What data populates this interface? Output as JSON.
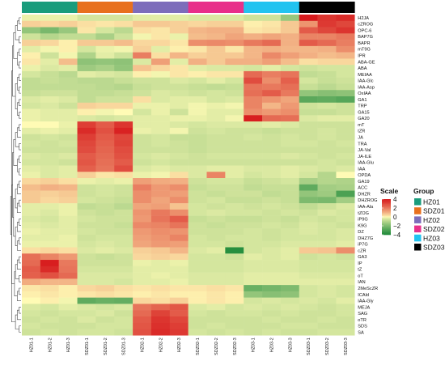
{
  "chart_data": {
    "type": "heatmap",
    "rows": [
      "H2JA",
      "cZROG",
      "OPC-6",
      "BAP7G",
      "BAPR",
      "mT9G",
      "IPR",
      "ABA-GE",
      "ABA",
      "MEIAA",
      "IAA-Glc",
      "IAA-Asp",
      "OxIAA",
      "GA1",
      "TRP",
      "GA15",
      "GA20",
      "mT",
      "tZR",
      "JA",
      "TRA",
      "JA-Val",
      "JA-ILE",
      "IAA-Glu",
      "IAA",
      "OPDA",
      "GA19",
      "ACC",
      "DHZR",
      "DHZROG",
      "IAA-Ala",
      "tZOG",
      "iP9G",
      "K9G",
      "DZ",
      "DHZ7G",
      "iP7G",
      "cZR",
      "GA3",
      "IP",
      "tZ",
      "oT",
      "IAN",
      "2MeScZR",
      "ICAld",
      "IAA-Gly",
      "MEJA",
      "SAG",
      "oTR",
      "SDS",
      "SA"
    ],
    "columns": [
      "HZ01-1",
      "HZ01-2",
      "HZ01-3",
      "SDZ01-1",
      "SDZ01-2",
      "SDZ01-3",
      "HZ02-1",
      "HZ02-2",
      "HZ02-3",
      "SDZ02-1",
      "SDZ02-2",
      "SDZ02-3",
      "HZ03-1",
      "HZ03-2",
      "HZ03-3",
      "SDZ03-1",
      "SDZ03-2",
      "SDZ03-3"
    ],
    "groups": [
      {
        "name": "HZ01",
        "color": "#1a9c7c",
        "span": 3
      },
      {
        "name": "SDZ01",
        "color": "#e8701e",
        "span": 3
      },
      {
        "name": "HZ02",
        "color": "#7d6dbb",
        "span": 3
      },
      {
        "name": "SDZ02",
        "color": "#e8308a",
        "span": 3
      },
      {
        "name": "HZ03",
        "color": "#22c3f0",
        "span": 3
      },
      {
        "name": "SDZ03",
        "color": "#000000",
        "span": 3
      }
    ],
    "values": [
      [
        -0.2,
        -0.2,
        -0.2,
        -0.5,
        -0.5,
        -0.5,
        -0.3,
        -0.3,
        -0.3,
        -0.4,
        -0.4,
        -0.4,
        -0.6,
        -0.6,
        -1.5,
        4.0,
        3.4,
        3.6
      ],
      [
        0.5,
        0.4,
        0.5,
        0.3,
        0.2,
        0.3,
        0.6,
        0.6,
        0.5,
        0.4,
        0.5,
        0.5,
        0.1,
        0.2,
        0.6,
        1.5,
        3.3,
        3.0
      ],
      [
        -1.6,
        -2.1,
        -1.5,
        0.2,
        -0.5,
        -0.9,
        0.3,
        0.2,
        0.5,
        0.9,
        1.0,
        1.0,
        0.2,
        0.3,
        0.6,
        2.6,
        3.0,
        3.4
      ],
      [
        -0.6,
        -1.0,
        -0.8,
        -0.8,
        -1.2,
        -0.6,
        -0.1,
        0.2,
        -0.2,
        0.8,
        0.9,
        1.2,
        1.0,
        1.2,
        1.0,
        1.8,
        1.8,
        2.0
      ],
      [
        0.5,
        0.4,
        0.1,
        0.6,
        0.6,
        0.8,
        0.4,
        0.4,
        0.2,
        1.6,
        1.7,
        1.6,
        2.0,
        2.3,
        1.0,
        2.6,
        2.3,
        1.9
      ],
      [
        -0.3,
        -0.1,
        0.1,
        -0.5,
        -0.2,
        -0.1,
        0.5,
        -0.3,
        0.1,
        0.2,
        0.6,
        0.2,
        0.9,
        1.0,
        0.9,
        0.9,
        1.0,
        1.6
      ],
      [
        0.1,
        -0.6,
        -0.1,
        -1.1,
        -0.3,
        -0.6,
        1.9,
        0.3,
        0.9,
        0.5,
        0.6,
        0.6,
        0.9,
        1.7,
        1.3,
        1.0,
        0.8,
        0.9
      ],
      [
        0.2,
        -0.3,
        0.8,
        -1.7,
        -1.6,
        -1.7,
        -0.4,
        1.3,
        -0.3,
        1.0,
        0.6,
        1.0,
        1.0,
        1.3,
        0.8,
        0.3,
        0.4,
        0.4
      ],
      [
        -0.2,
        -0.4,
        -0.3,
        -1.4,
        -1.2,
        -1.6,
        0.7,
        0.4,
        0.2,
        -0.3,
        -0.4,
        -0.4,
        -0.5,
        -0.3,
        -0.5,
        -0.6,
        -0.5,
        -0.5
      ],
      [
        -0.5,
        -0.7,
        -0.9,
        -0.3,
        -0.4,
        -0.5,
        0.1,
        -0.1,
        0.2,
        0.1,
        0.2,
        0.2,
        2.3,
        1.9,
        2.1,
        -0.8,
        -0.7,
        -0.5
      ],
      [
        -0.8,
        -0.7,
        -0.8,
        -0.9,
        -0.9,
        -0.7,
        -0.6,
        -0.6,
        -0.4,
        -0.5,
        -0.3,
        -0.5,
        2.9,
        1.6,
        2.5,
        -0.5,
        -0.7,
        -0.6
      ],
      [
        -0.8,
        -0.8,
        -0.8,
        -0.8,
        -0.9,
        -1.0,
        -0.7,
        -0.6,
        -0.6,
        -0.7,
        -0.8,
        -0.7,
        2.1,
        2.0,
        2.2,
        -0.7,
        -0.9,
        -0.7
      ],
      [
        -0.7,
        -0.6,
        -0.6,
        -0.8,
        -0.8,
        -0.7,
        -0.6,
        -0.4,
        -0.5,
        -0.6,
        -0.5,
        -0.6,
        2.2,
        2.6,
        2.0,
        -1.6,
        -1.8,
        -1.7
      ],
      [
        -0.4,
        -0.3,
        -0.4,
        -0.8,
        -0.6,
        -0.6,
        0.3,
        -0.4,
        -0.3,
        -0.3,
        -0.5,
        -0.4,
        1.8,
        1.5,
        1.2,
        -2.7,
        -2.6,
        -2.8
      ],
      [
        -0.5,
        -0.4,
        -0.6,
        0.5,
        0.4,
        0.4,
        -0.2,
        -0.2,
        -0.3,
        -0.1,
        -0.2,
        -0.1,
        1.8,
        0.9,
        1.4,
        -0.6,
        -0.5,
        -0.6
      ],
      [
        -0.2,
        -0.3,
        -0.3,
        0.1,
        -0.1,
        0.0,
        -0.5,
        -0.2,
        -0.6,
        -0.1,
        -0.3,
        -0.3,
        1.6,
        1.4,
        1.6,
        -0.7,
        -0.7,
        -0.6
      ],
      [
        -0.2,
        -0.3,
        -0.3,
        -0.4,
        -0.5,
        -0.4,
        -0.3,
        -0.3,
        -0.2,
        -0.2,
        -0.3,
        -0.1,
        3.9,
        2.3,
        2.2,
        -0.4,
        -0.3,
        -0.3
      ],
      [
        0.0,
        0.0,
        -0.2,
        3.2,
        2.6,
        3.4,
        -0.3,
        -0.3,
        -0.4,
        -0.5,
        -0.4,
        -0.4,
        -0.4,
        -0.3,
        -0.4,
        -0.6,
        -0.6,
        -0.6
      ],
      [
        -0.3,
        -0.2,
        -0.3,
        3.6,
        2.8,
        3.8,
        -0.2,
        -0.3,
        -0.1,
        -0.6,
        -0.5,
        -0.6,
        -0.6,
        -0.7,
        -0.6,
        -0.6,
        -0.5,
        -0.6
      ],
      [
        -0.6,
        -0.5,
        -0.6,
        3.2,
        2.6,
        3.0,
        -0.6,
        -0.5,
        -0.7,
        -0.7,
        -0.6,
        -0.6,
        -0.5,
        -0.6,
        -0.5,
        -0.6,
        -0.5,
        -0.6
      ],
      [
        -0.5,
        -0.6,
        -0.5,
        3.0,
        2.5,
        3.1,
        -0.6,
        -0.5,
        -0.6,
        -0.7,
        -0.6,
        -0.6,
        -0.6,
        -0.6,
        -0.5,
        -0.5,
        -0.6,
        -0.5
      ],
      [
        -0.6,
        -0.6,
        -0.6,
        2.9,
        2.4,
        2.9,
        -0.6,
        -0.6,
        -0.6,
        -0.7,
        -0.6,
        -0.6,
        -0.6,
        -0.6,
        -0.6,
        -0.6,
        -0.6,
        -0.6
      ],
      [
        -0.4,
        -0.5,
        -0.4,
        2.6,
        2.3,
        2.8,
        -0.5,
        -0.4,
        -0.5,
        -0.6,
        -0.5,
        -0.5,
        -0.5,
        -0.5,
        -0.4,
        -0.5,
        -0.6,
        -0.5
      ],
      [
        -0.5,
        -0.5,
        -0.6,
        2.7,
        2.2,
        2.6,
        -0.6,
        -0.5,
        -0.6,
        -0.6,
        -0.6,
        -0.6,
        -0.6,
        -0.6,
        -0.6,
        -0.6,
        -0.5,
        -0.6
      ],
      [
        -0.3,
        -0.4,
        -0.3,
        2.5,
        2.1,
        2.9,
        -0.4,
        -0.3,
        -0.4,
        -0.4,
        -0.3,
        -0.3,
        -0.4,
        -0.4,
        -0.3,
        -0.4,
        -0.5,
        -0.4
      ],
      [
        -0.2,
        -0.4,
        -0.3,
        0.5,
        0.2,
        0.3,
        -0.2,
        -0.1,
        0.3,
        -0.4,
        1.8,
        -0.3,
        -0.5,
        -0.4,
        -0.3,
        -0.5,
        -1.0,
        0.0
      ],
      [
        0.4,
        0.5,
        0.3,
        -0.2,
        -0.3,
        -0.2,
        1.3,
        1.1,
        1.0,
        -0.6,
        -0.5,
        -0.5,
        -0.7,
        -0.6,
        -0.5,
        -1.2,
        -1.0,
        -1.1
      ],
      [
        0.8,
        1.0,
        0.9,
        -0.6,
        -0.5,
        -0.6,
        1.9,
        1.4,
        1.6,
        -0.7,
        -0.6,
        -0.6,
        -0.8,
        -0.7,
        -0.7,
        -2.6,
        -1.3,
        -1.2
      ],
      [
        0.6,
        0.5,
        0.6,
        -0.6,
        -0.5,
        -0.6,
        1.6,
        1.4,
        1.3,
        -0.6,
        -0.7,
        -0.6,
        -0.6,
        -0.8,
        -0.7,
        -1.6,
        -1.4,
        -3.0
      ],
      [
        0.6,
        0.4,
        0.5,
        -0.5,
        -0.6,
        -0.7,
        1.6,
        1.2,
        1.6,
        -0.6,
        -0.5,
        -0.7,
        -0.7,
        -0.6,
        -0.7,
        -2.0,
        -2.1,
        -1.3
      ],
      [
        -0.3,
        -0.3,
        -0.2,
        -0.8,
        -0.7,
        -0.9,
        1.2,
        1.3,
        0.7,
        -0.5,
        -0.6,
        -0.5,
        -0.6,
        -0.5,
        -0.6,
        -0.8,
        -0.6,
        -0.4
      ],
      [
        -0.3,
        -0.4,
        -0.2,
        -0.6,
        -0.7,
        -0.6,
        1.5,
        2.0,
        1.6,
        -0.5,
        -0.4,
        -0.5,
        -0.5,
        -0.6,
        -0.5,
        -0.6,
        -0.4,
        -0.5
      ],
      [
        -0.4,
        -0.5,
        -0.3,
        -0.5,
        -0.6,
        -0.6,
        1.4,
        2.1,
        2.6,
        -0.7,
        -0.6,
        -0.7,
        -0.7,
        -0.6,
        -0.7,
        -0.5,
        -0.6,
        -0.5
      ],
      [
        -0.3,
        -0.4,
        -0.3,
        -0.6,
        -0.6,
        -0.7,
        1.7,
        1.8,
        2.1,
        -0.6,
        -0.7,
        -0.6,
        -0.6,
        -0.5,
        -0.6,
        -0.4,
        -0.5,
        -0.6
      ],
      [
        -0.2,
        -0.3,
        -0.3,
        -0.5,
        -0.6,
        -0.6,
        1.4,
        1.6,
        1.5,
        -0.6,
        -0.6,
        -0.6,
        -0.5,
        -0.6,
        -0.5,
        -0.4,
        -0.5,
        -0.4
      ],
      [
        -0.3,
        -0.3,
        -0.2,
        -0.6,
        -0.5,
        -0.5,
        1.3,
        1.5,
        1.8,
        -0.5,
        -0.6,
        -0.5,
        -0.5,
        -0.6,
        -0.5,
        -0.5,
        -0.5,
        -0.4
      ],
      [
        -0.2,
        -0.2,
        -0.2,
        -0.5,
        -0.4,
        -0.5,
        1.2,
        1.4,
        1.3,
        -0.5,
        -0.5,
        -0.6,
        -0.5,
        -0.5,
        -0.4,
        -0.4,
        -0.4,
        -0.3
      ],
      [
        0.3,
        0.4,
        0.3,
        -0.4,
        -0.3,
        -0.4,
        0.5,
        0.6,
        0.9,
        -0.4,
        -0.3,
        -3.8,
        -0.5,
        -0.4,
        -0.3,
        0.6,
        0.7,
        1.6
      ],
      [
        2.2,
        1.8,
        1.4,
        -0.6,
        -0.7,
        -0.6,
        0.4,
        0.5,
        0.4,
        -0.5,
        -0.5,
        -0.6,
        -0.3,
        -0.4,
        -0.3,
        -0.6,
        -0.5,
        -0.6
      ],
      [
        2.3,
        3.9,
        2.0,
        -0.6,
        -0.6,
        -0.6,
        -0.2,
        -0.3,
        -0.2,
        -0.5,
        -0.5,
        -0.5,
        -0.4,
        -0.4,
        -0.4,
        -0.5,
        -0.5,
        -0.5
      ],
      [
        2.6,
        3.6,
        2.1,
        -0.5,
        -0.5,
        -0.5,
        -0.3,
        -0.3,
        -0.3,
        -0.5,
        -0.5,
        -0.5,
        -0.4,
        -0.4,
        -0.4,
        -0.5,
        -0.5,
        -0.5
      ],
      [
        2.5,
        2.8,
        2.3,
        -0.4,
        -0.4,
        -0.4,
        -0.3,
        -0.2,
        -0.3,
        -0.4,
        -0.4,
        -0.4,
        -0.3,
        -0.3,
        -0.3,
        -0.4,
        -0.4,
        -0.4
      ],
      [
        1.1,
        0.9,
        0.9,
        -0.4,
        -0.4,
        -0.5,
        -0.3,
        -0.3,
        -0.2,
        -0.4,
        -0.4,
        -0.4,
        -0.3,
        -0.3,
        -0.3,
        -0.3,
        -0.3,
        -0.3
      ],
      [
        0.2,
        0.3,
        0.1,
        0.4,
        0.5,
        0.3,
        0.2,
        0.3,
        0.2,
        0.2,
        0.3,
        0.2,
        -2.4,
        -2.2,
        -2.0,
        -0.5,
        -0.4,
        -0.5
      ],
      [
        0.1,
        0.2,
        0.1,
        0.2,
        0.3,
        0.2,
        0.1,
        0.2,
        0.1,
        0.1,
        0.2,
        0.1,
        -1.6,
        -1.8,
        -1.7,
        -0.5,
        -0.4,
        -0.5
      ],
      [
        0.0,
        0.1,
        -0.1,
        -2.6,
        -2.4,
        -2.5,
        0.4,
        0.3,
        0.5,
        0.1,
        0.2,
        0.1,
        -0.5,
        -0.4,
        -0.5,
        -0.4,
        -0.5,
        -0.3
      ],
      [
        -0.4,
        -0.5,
        -0.3,
        -0.4,
        -0.5,
        -0.4,
        2.1,
        2.4,
        2.7,
        -0.4,
        -0.3,
        -0.5,
        -0.4,
        -0.5,
        -0.4,
        -0.5,
        -0.6,
        -0.5
      ],
      [
        -0.5,
        -0.6,
        -0.5,
        -0.5,
        -0.4,
        -0.6,
        2.3,
        3.1,
        2.6,
        -0.5,
        -0.6,
        -0.5,
        -0.5,
        -0.6,
        -0.5,
        -0.6,
        -0.6,
        -0.5
      ],
      [
        -0.6,
        -0.5,
        -0.6,
        -0.4,
        -0.6,
        -0.5,
        2.6,
        3.4,
        3.0,
        -0.6,
        -0.6,
        -0.6,
        -0.6,
        -0.5,
        -0.6,
        -0.6,
        -0.5,
        -0.6
      ],
      [
        -0.5,
        -0.6,
        -0.6,
        -0.6,
        -0.5,
        -0.5,
        2.7,
        3.5,
        3.2,
        -0.6,
        -0.5,
        -0.6,
        -0.6,
        -0.6,
        -0.5,
        -0.5,
        -0.6,
        -0.6
      ],
      [
        -0.6,
        -0.5,
        -0.6,
        -0.5,
        -0.5,
        -0.6,
        2.8,
        3.6,
        3.3,
        -0.5,
        -0.6,
        -0.5,
        -0.6,
        -0.5,
        -0.6,
        -0.6,
        -0.5,
        -0.5
      ]
    ],
    "colorscale": {
      "low": "#1e8a3a",
      "mid": "#fffbb5",
      "high": "#d7191c",
      "min": -4,
      "max": 4
    },
    "legend": {
      "scale_title": "Scale",
      "scale_ticks": [
        4,
        2,
        0,
        -2,
        -4
      ],
      "group_title": "Group",
      "placement": "right"
    },
    "row_dendrogram": true
  }
}
